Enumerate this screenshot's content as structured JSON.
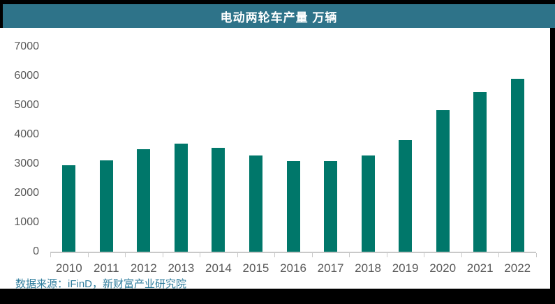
{
  "banner": {
    "title": "电动两轮车产量 万辆"
  },
  "footer": {
    "source": "数据来源：iFinD，新财富产业研究院"
  },
  "colors": {
    "page_bg": "#000000",
    "sheet_bg": "#ffffff",
    "banner_bg": "#2e7389",
    "title_text": "#ffffff",
    "bar": "#00776a",
    "axis_text": "#595959",
    "axis_line": "#c9c9c9",
    "source_text": "#2f7d9d"
  },
  "chart_data": {
    "type": "bar",
    "title": "电动两轮车产量 万辆",
    "ylabel": "万辆",
    "categories": [
      "2010",
      "2011",
      "2012",
      "2013",
      "2014",
      "2015",
      "2016",
      "2017",
      "2018",
      "2019",
      "2020",
      "2021",
      "2022"
    ],
    "values": [
      2960,
      3110,
      3500,
      3700,
      3540,
      3280,
      3100,
      3090,
      3290,
      3810,
      4830,
      5460,
      5900
    ],
    "ylim": [
      0,
      7000
    ],
    "yticks": [
      0,
      1000,
      2000,
      3000,
      4000,
      5000,
      6000,
      7000
    ],
    "grid": false,
    "legend": false
  }
}
